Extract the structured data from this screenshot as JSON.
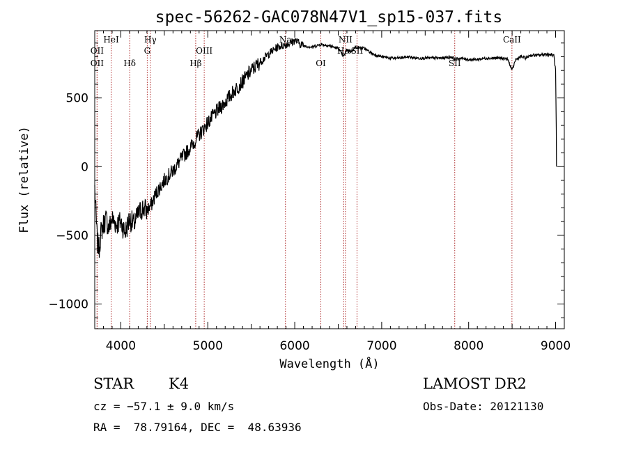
{
  "chart_data": {
    "type": "line",
    "title": "spec-56262-GAC078N47V1_sp15-037.fits",
    "xlabel": "Wavelength (Å)",
    "ylabel": "Flux (relative)",
    "xlim": [
      3700,
      9100
    ],
    "ylim": [
      -1180,
      990
    ],
    "x_ticks": [
      4000,
      5000,
      6000,
      7000,
      8000,
      9000
    ],
    "x_tick_labels": [
      "4000",
      "5000",
      "6000",
      "7000",
      "8000",
      "9000"
    ],
    "y_ticks": [
      -1000,
      -500,
      0,
      500
    ],
    "y_tick_labels": [
      "−1000",
      "−500",
      "0",
      "500"
    ],
    "grid": false,
    "series": [
      {
        "x": [
          3700,
          3710,
          3730,
          3750,
          3770,
          3800,
          3830,
          3860,
          3900,
          3950,
          4000,
          4050,
          4100,
          4150,
          4200,
          4250,
          4300,
          4350,
          4400,
          4500,
          4600,
          4700,
          4800,
          4900,
          5000,
          5100,
          5200,
          5300,
          5400,
          5500,
          5600,
          5700,
          5800,
          5850,
          5900,
          5950,
          6000,
          6050,
          6100,
          6200,
          6300,
          6400,
          6500,
          6560,
          6600,
          6650,
          6700,
          6800,
          6900,
          7000,
          7100,
          7200,
          7300,
          7400,
          7500,
          7600,
          7700,
          7800,
          7850,
          7900,
          8000,
          8100,
          8200,
          8300,
          8400,
          8450,
          8500,
          8540,
          8600,
          8660,
          8700,
          8800,
          8900,
          8980,
          9000,
          9010
        ],
        "y": [
          -150,
          -300,
          -550,
          -600,
          -480,
          -420,
          -380,
          -450,
          -380,
          -420,
          -400,
          -480,
          -380,
          -420,
          -350,
          -300,
          -320,
          -280,
          -200,
          -100,
          -30,
          60,
          140,
          230,
          320,
          400,
          470,
          550,
          620,
          700,
          760,
          820,
          870,
          880,
          890,
          900,
          920,
          900,
          880,
          870,
          890,
          880,
          860,
          800,
          850,
          840,
          870,
          860,
          820,
          800,
          790,
          790,
          800,
          790,
          790,
          790,
          790,
          800,
          780,
          790,
          780,
          780,
          790,
          790,
          790,
          780,
          700,
          780,
          800,
          790,
          810,
          810,
          820,
          810,
          700,
          150
        ]
      }
    ],
    "line_markers": [
      {
        "name": "OII",
        "x": 3727,
        "row": 3
      },
      {
        "name": "OII",
        "x": 3727,
        "row": 2
      },
      {
        "name": "HeI",
        "x": 3889,
        "row": 1
      },
      {
        "name": "Hδ",
        "x": 4102,
        "row": 3
      },
      {
        "name": "Hγ",
        "x": 4340,
        "row": 1
      },
      {
        "name": "G",
        "x": 4304,
        "row": 2
      },
      {
        "name": "Hβ",
        "x": 4861,
        "row": 3
      },
      {
        "name": "OIII",
        "x": 4959,
        "row": 2
      },
      {
        "name": "Na",
        "x": 5893,
        "row": 1
      },
      {
        "name": "OI",
        "x": 6300,
        "row": 3
      },
      {
        "name": "Hα",
        "x": 6563,
        "row": 2
      },
      {
        "name": "NII",
        "x": 6583,
        "row": 1
      },
      {
        "name": "SII",
        "x": 6716,
        "row": 2
      },
      {
        "name": "SII",
        "x": 7840,
        "row": 3
      },
      {
        "name": "CaII",
        "x": 8498,
        "row": 1
      }
    ]
  },
  "info": {
    "class": "STAR",
    "subclass": "K4",
    "survey": "LAMOST DR2",
    "cz": "cz = −57.1 ± 9.0 km/s",
    "obs_date": "Obs-Date: 20121130",
    "radec": "RA =  78.79164, DEC =  48.63936"
  }
}
